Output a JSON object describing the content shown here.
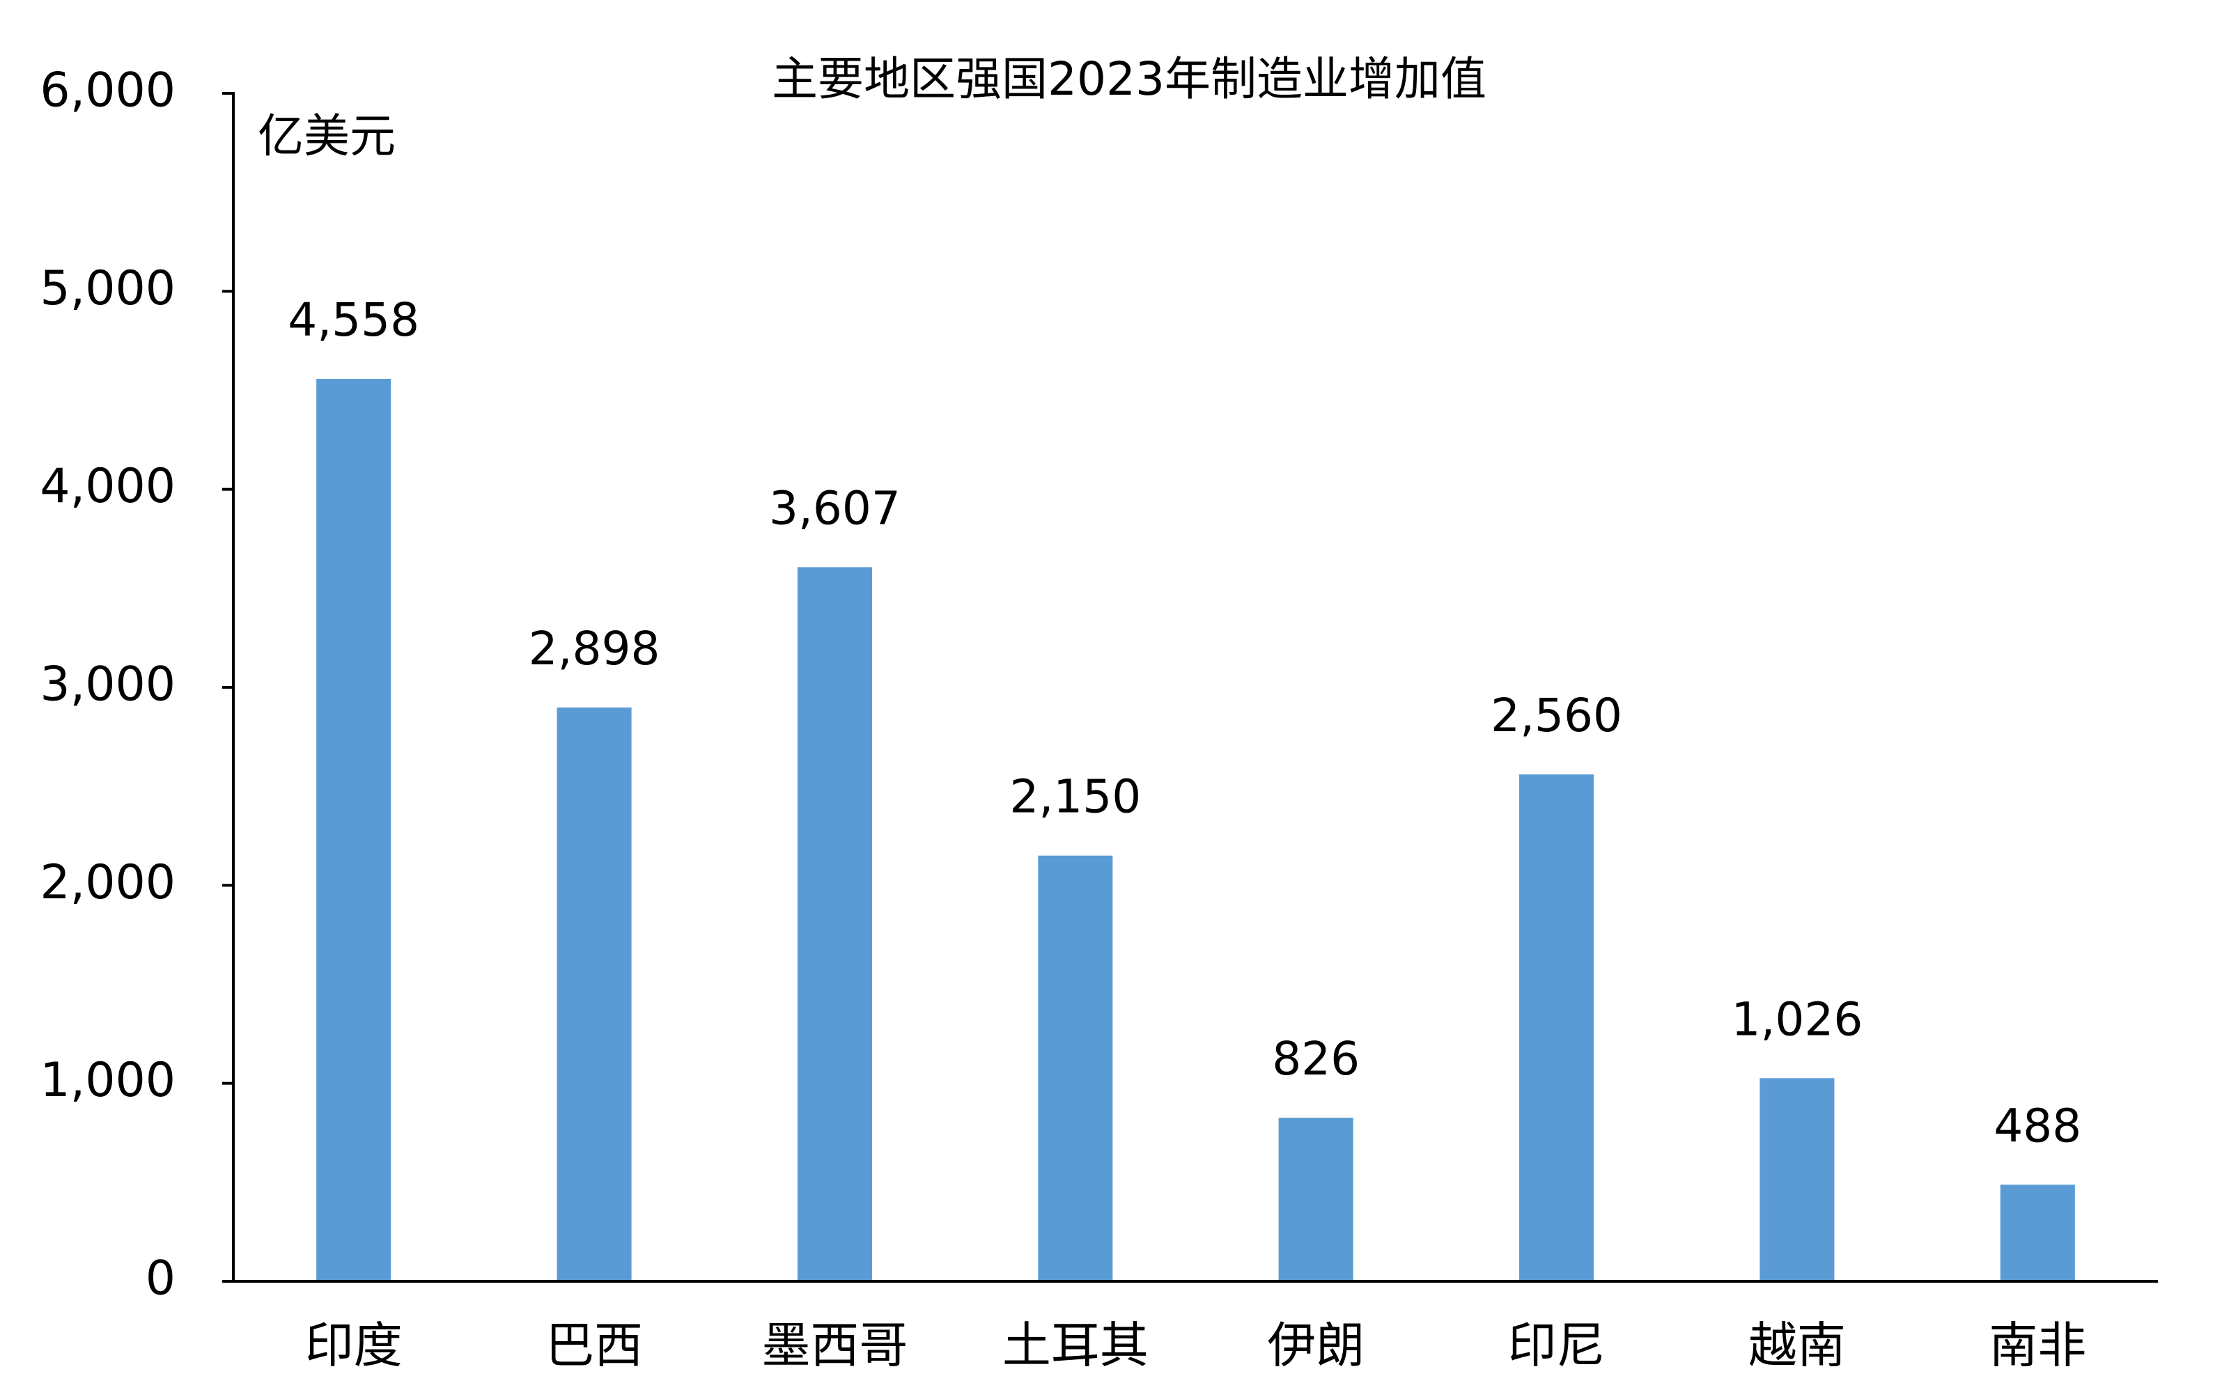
{
  "chart_data": {
    "type": "bar",
    "title": "主要地区强国2023年制造业增加值",
    "y_axis_label": "亿美元",
    "categories": [
      "印度",
      "巴西",
      "墨西哥",
      "土耳其",
      "伊朗",
      "印尼",
      "越南",
      "南非"
    ],
    "values": [
      4558,
      2898,
      3607,
      2150,
      826,
      2560,
      1026,
      488
    ],
    "value_labels": [
      "4,558",
      "2,898",
      "3,607",
      "2,150",
      "826",
      "2,560",
      "1,026",
      "488"
    ],
    "color": "#5b9bd5",
    "ylim": [
      0,
      6000
    ],
    "yticks": [
      0,
      {
        "value": 1000,
        "label": "1,000"
      },
      {
        "value": 2000,
        "label": "2,000"
      },
      {
        "value": 3000,
        "label": "3,000"
      },
      {
        "value": 4000,
        "label": "4,000"
      },
      {
        "value": 5000,
        "label": "5,000"
      },
      {
        "value": 6000,
        "label": "6,000"
      }
    ],
    "grid": false
  }
}
